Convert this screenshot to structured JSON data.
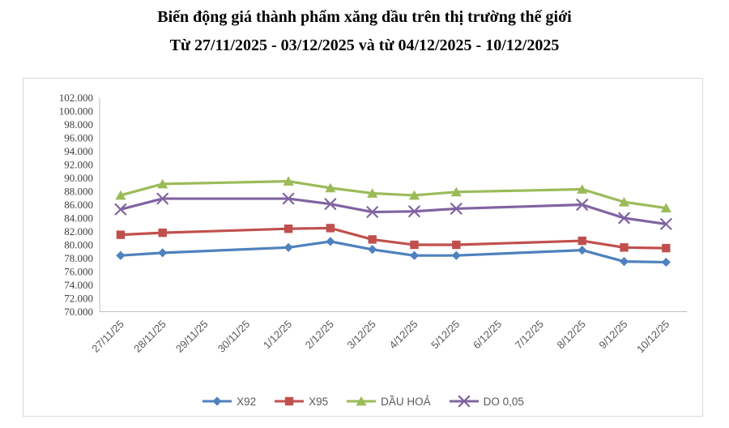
{
  "header": {
    "title": "Biến động giá thành phẩm xăng dầu trên thị trường thế giới",
    "subtitle": "Từ 27/11/2025 - 03/12/2025 và từ 04/12/2025 - 10/12/2025"
  },
  "chart_data": {
    "type": "line",
    "title": "Biến động giá thành phẩm xăng dầu trên thị trường thế giới",
    "subtitle": "Từ 27/11/2025 - 03/12/2025 và từ 04/12/2025 - 10/12/2025",
    "categories": [
      "27/11/25",
      "28/11/25",
      "29/11/25",
      "30/11/25",
      "1/12/25",
      "2/12/25",
      "3/12/25",
      "4/12/25",
      "5/12/25",
      "6/12/25",
      "7/12/25",
      "8/12/25",
      "9/12/25",
      "10/12/25"
    ],
    "series": [
      {
        "name": "X92",
        "color": "#4F81BD",
        "marker": "diamond",
        "values": [
          78.4,
          78.8,
          null,
          null,
          79.6,
          80.5,
          79.3,
          78.4,
          78.4,
          null,
          null,
          79.2,
          77.5,
          77.4
        ]
      },
      {
        "name": "X95",
        "color": "#C0504D",
        "marker": "square",
        "values": [
          81.5,
          81.8,
          null,
          null,
          82.4,
          82.5,
          80.8,
          80.0,
          80.0,
          null,
          null,
          80.6,
          79.6,
          79.5
        ]
      },
      {
        "name": "DẦU HOẢ",
        "color": "#9BBB59",
        "marker": "triangle",
        "values": [
          87.4,
          89.1,
          null,
          null,
          89.5,
          88.5,
          87.7,
          87.4,
          87.9,
          null,
          null,
          88.3,
          86.4,
          85.5
        ]
      },
      {
        "name": "DO 0,05",
        "color": "#8064A2",
        "marker": "x",
        "values": [
          85.3,
          86.9,
          null,
          null,
          86.9,
          86.1,
          84.9,
          85.0,
          85.4,
          null,
          null,
          86.0,
          84.0,
          83.1
        ]
      }
    ],
    "ylim": [
      70,
      102
    ],
    "ytick_step": 2,
    "ytick_decimals": 3,
    "grid": "off",
    "legend_position": "bottom",
    "axis_color": "#bfbfbf",
    "frame_color": "#d9d9d9"
  }
}
